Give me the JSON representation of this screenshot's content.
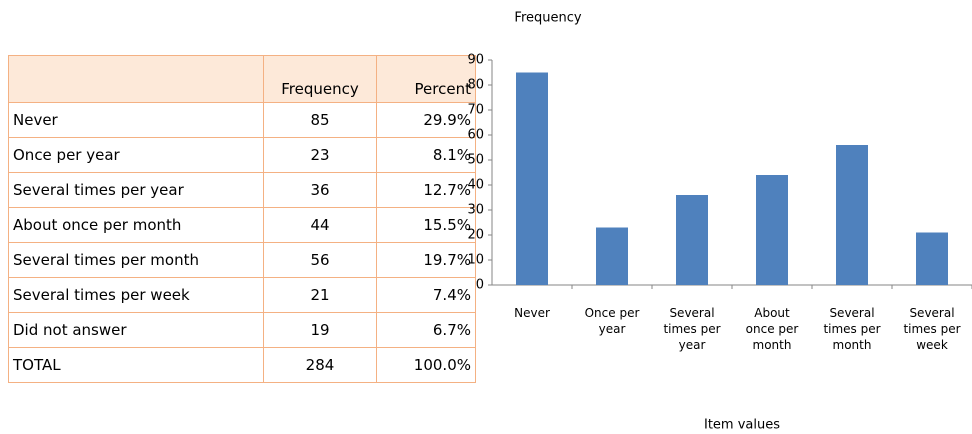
{
  "table": {
    "header": [
      "Frequency",
      "Percent"
    ],
    "rows": [
      [
        "Never",
        "85",
        "29.9%"
      ],
      [
        "Once per year",
        "23",
        "8.1%"
      ],
      [
        "Several times per year",
        "36",
        "12.7%"
      ],
      [
        "About once per month",
        "44",
        "15.5%"
      ],
      [
        "Several times per month",
        "56",
        "19.7%"
      ],
      [
        "Several times per week",
        "21",
        "7.4%"
      ],
      [
        "Did not answer",
        "19",
        "6.7%"
      ],
      [
        "TOTAL",
        "284",
        "100.0%"
      ]
    ]
  },
  "chart_data": {
    "type": "bar",
    "title": "Frequency",
    "x_label": "Item values",
    "categories": [
      "Never",
      "Once per year",
      "Several times per year",
      "About once per month",
      "Several times per month",
      "Several times per week"
    ],
    "values": [
      85,
      23,
      36,
      44,
      56,
      21
    ],
    "color": "#4f81bd",
    "ylim": [
      0,
      90
    ],
    "yticks": [
      0,
      10,
      20,
      30,
      40,
      50,
      60,
      70,
      80,
      90
    ],
    "grid": false
  }
}
